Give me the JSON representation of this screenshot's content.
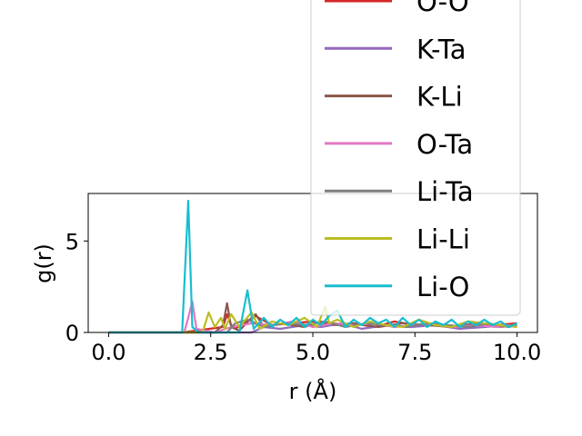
{
  "chart_data": {
    "type": "line",
    "xlabel": "r (Å)",
    "ylabel": "g(r)",
    "xlim": [
      -0.5,
      10.5
    ],
    "ylim": [
      0,
      7.6
    ],
    "xticks": [
      "0.0",
      "2.5",
      "5.0",
      "7.5",
      "10.0"
    ],
    "xtick_values": [
      0,
      2.5,
      5,
      7.5,
      10
    ],
    "yticks": [
      "0",
      "5"
    ],
    "ytick_values": [
      0,
      5
    ],
    "grid": false,
    "legend_position": "top-right",
    "series": [
      {
        "name": "O-O",
        "color": "#d62728",
        "x": [
          0,
          1.8,
          2.8,
          2.9,
          3.0,
          3.1,
          3.6,
          4.0,
          4.5,
          5.0,
          5.5,
          6.0,
          6.5,
          7.0,
          7.5,
          8.0,
          8.5,
          9.0,
          9.5,
          10.0
        ],
        "y": [
          0,
          0,
          0.3,
          1.0,
          0.4,
          0.2,
          0.9,
          0.4,
          0.5,
          0.6,
          0.4,
          0.5,
          0.3,
          0.6,
          0.4,
          0.5,
          0.3,
          0.5,
          0.4,
          0.5
        ]
      },
      {
        "name": "K-Ta",
        "color": "#9467bd",
        "x": [
          0,
          3.5,
          3.8,
          4.2,
          4.8,
          5.2,
          5.7,
          6.2,
          6.8,
          7.4,
          8.0,
          8.6,
          9.2,
          9.8,
          10.0
        ],
        "y": [
          0,
          0,
          0.3,
          0.2,
          0.4,
          0.3,
          0.5,
          0.2,
          0.4,
          0.3,
          0.4,
          0.2,
          0.3,
          0.4,
          0.3
        ]
      },
      {
        "name": "K-Li",
        "color": "#8c564b",
        "x": [
          0,
          2.6,
          2.8,
          2.9,
          3.0,
          3.2,
          3.5,
          3.6,
          3.8,
          4.2,
          4.8,
          5.2,
          5.6,
          6.0,
          6.6,
          7.2,
          7.8,
          8.4,
          9.0,
          9.6,
          10.0
        ],
        "y": [
          0,
          0,
          0.4,
          1.6,
          0.3,
          0.1,
          0.8,
          1.0,
          0.3,
          0.5,
          0.3,
          0.6,
          0.4,
          0.5,
          0.3,
          0.5,
          0.4,
          0.3,
          0.5,
          0.3,
          0.4
        ]
      },
      {
        "name": "O-Ta",
        "color": "#e377c2",
        "x": [
          0,
          1.85,
          1.95,
          2.05,
          2.15,
          2.6,
          3.0,
          3.5,
          4.0,
          4.5,
          5.0,
          5.5,
          6.0,
          6.5,
          7.0,
          7.5,
          8.0,
          8.5,
          9.0,
          9.5,
          10.0
        ],
        "y": [
          0,
          0,
          0.8,
          1.7,
          0.2,
          0,
          0.3,
          0.5,
          0.4,
          0.6,
          0.3,
          0.5,
          0.4,
          0.5,
          0.3,
          0.4,
          0.5,
          0.3,
          0.4,
          0.3,
          0.4
        ]
      },
      {
        "name": "Li-Ta",
        "color": "#7f7f7f",
        "x": [
          0,
          2.9,
          3.1,
          3.4,
          3.8,
          4.3,
          4.8,
          5.3,
          5.8,
          6.3,
          6.8,
          7.3,
          7.8,
          8.3,
          8.8,
          9.3,
          9.8,
          10.0
        ],
        "y": [
          0,
          0,
          0.5,
          0.7,
          0.3,
          0.5,
          0.4,
          0.6,
          0.3,
          0.5,
          0.4,
          0.3,
          0.5,
          0.4,
          0.3,
          0.5,
          0.3,
          0.4
        ]
      },
      {
        "name": "Li-Li",
        "color": "#bcbd22",
        "x": [
          0,
          2.3,
          2.45,
          2.6,
          2.75,
          2.85,
          3.0,
          3.2,
          3.5,
          3.7,
          4.0,
          4.4,
          4.8,
          5.1,
          5.3,
          5.4,
          5.6,
          6.0,
          6.4,
          6.8,
          7.2,
          7.6,
          8.0,
          8.4,
          8.8,
          9.2,
          9.6,
          10.0
        ],
        "y": [
          0,
          0,
          1.1,
          0.3,
          0.8,
          0.2,
          1.0,
          0.3,
          1.1,
          0.2,
          0.6,
          0.4,
          0.8,
          0.3,
          1.4,
          0.5,
          0.7,
          0.3,
          0.6,
          0.4,
          0.3,
          0.7,
          0.4,
          0.3,
          0.6,
          0.5,
          0.4,
          0.3
        ]
      },
      {
        "name": "Li-O",
        "color": "#17becf",
        "x": [
          0,
          1.8,
          1.95,
          2.05,
          2.2,
          3.2,
          3.4,
          3.55,
          3.8,
          4.0,
          4.2,
          4.4,
          4.6,
          4.8,
          5.0,
          5.2,
          5.4,
          5.6,
          5.8,
          6.0,
          6.2,
          6.4,
          6.6,
          6.8,
          7.0,
          7.2,
          7.4,
          7.6,
          7.8,
          8.0,
          8.2,
          8.4,
          8.6,
          8.8,
          9.0,
          9.2,
          9.4,
          9.6,
          9.8,
          10.0
        ],
        "y": [
          0,
          0,
          7.2,
          0.3,
          0,
          0,
          2.3,
          0.2,
          0.8,
          0.3,
          0.7,
          0.4,
          0.8,
          0.3,
          0.7,
          0.4,
          0.9,
          1.2,
          0.3,
          0.7,
          0.4,
          0.8,
          0.5,
          0.7,
          0.3,
          0.8,
          0.4,
          0.7,
          0.3,
          0.6,
          0.4,
          0.7,
          0.3,
          0.6,
          0.4,
          0.7,
          0.4,
          0.6,
          0.3,
          0.5
        ]
      }
    ]
  }
}
